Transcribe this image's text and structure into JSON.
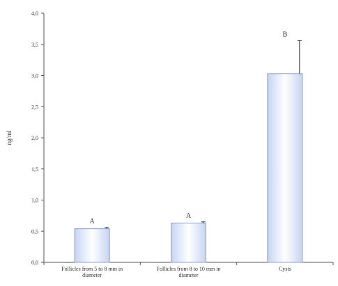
{
  "chart_data": {
    "type": "bar",
    "title": "",
    "xlabel": "",
    "ylabel": "ng/ml",
    "ylim": [
      0,
      4
    ],
    "yticks": [
      "0,0",
      "0,5",
      "1,0",
      "1,5",
      "2,0",
      "2,5",
      "3,0",
      "3,5",
      "4,0"
    ],
    "categories": [
      [
        "Follicles from 5 to 8 mm in",
        "diameter"
      ],
      [
        "Follicles from 8 to 10 mm in",
        "diameter"
      ],
      [
        "Cysts"
      ]
    ],
    "values": [
      0.54,
      0.63,
      3.03
    ],
    "errors": [
      0.02,
      0.02,
      0.53
    ],
    "significance": [
      "A",
      "A",
      "B"
    ],
    "colors": {
      "bar_edge": "#8a9fd0",
      "bar_center": "#ffffff",
      "bar_side": "#c6d4f2",
      "axis": "#555555"
    }
  }
}
